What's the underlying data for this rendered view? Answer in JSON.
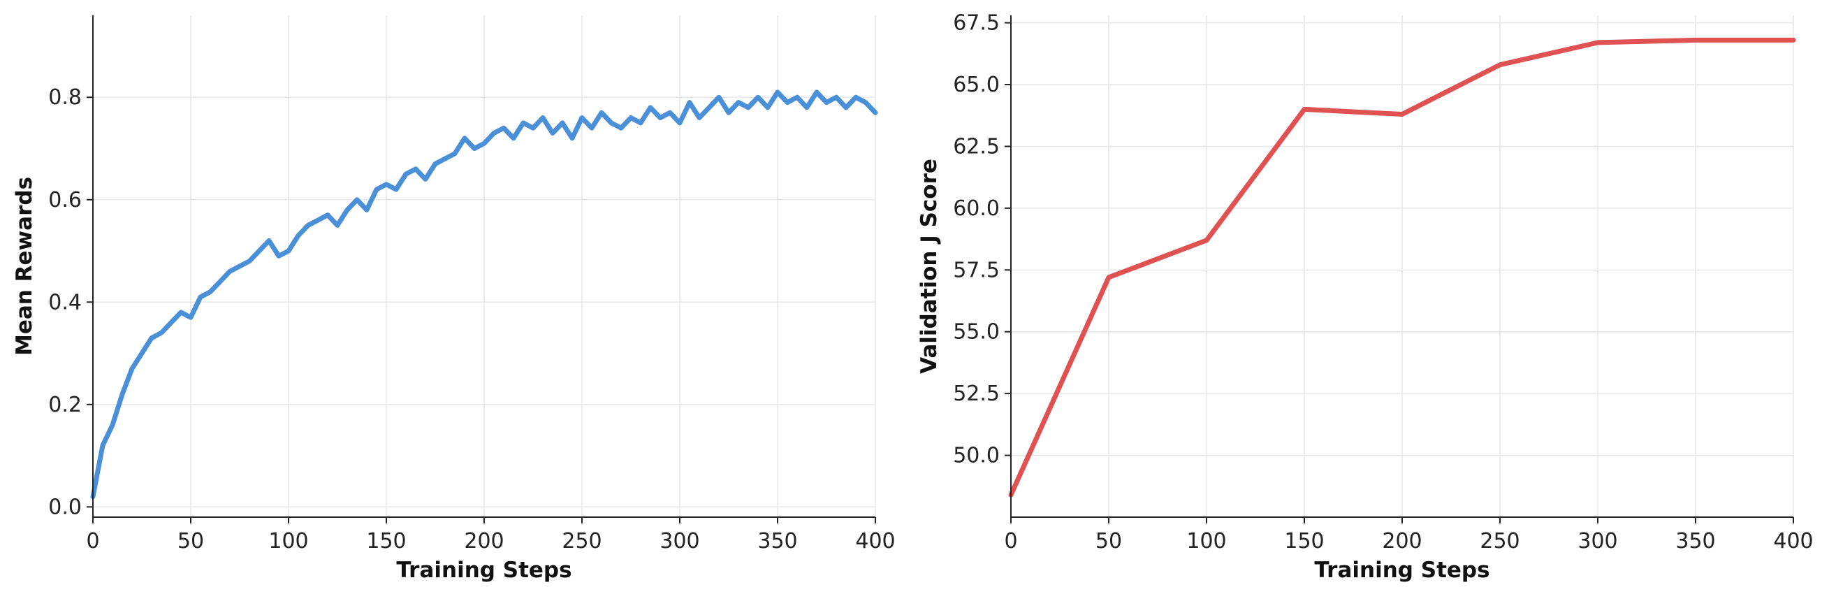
{
  "colors": {
    "rewards_line": "#4a90d9",
    "validation_line": "#e05252",
    "grid": "#e6e6e6",
    "axis": "#222222"
  },
  "chart_data": [
    {
      "type": "line",
      "title": "",
      "xlabel": "Training Steps",
      "ylabel": "Mean Rewards",
      "xlim": [
        0,
        400
      ],
      "ylim": [
        -0.02,
        0.96
      ],
      "xticks": [
        0,
        50,
        100,
        150,
        200,
        250,
        300,
        350,
        400
      ],
      "xtick_labels": [
        "0",
        "50",
        "100",
        "150",
        "200",
        "250",
        "300",
        "350",
        "400"
      ],
      "yticks": [
        0.0,
        0.2,
        0.4,
        0.6,
        0.8
      ],
      "ytick_labels": [
        "0.0",
        "0.2",
        "0.4",
        "0.6",
        "0.8"
      ],
      "grid": true,
      "legend": "none",
      "series": [
        {
          "color": "#4a90d9",
          "x": [
            0,
            5,
            10,
            15,
            20,
            25,
            30,
            35,
            40,
            45,
            50,
            55,
            60,
            65,
            70,
            75,
            80,
            85,
            90,
            95,
            100,
            105,
            110,
            115,
            120,
            125,
            130,
            135,
            140,
            145,
            150,
            155,
            160,
            165,
            170,
            175,
            180,
            185,
            190,
            195,
            200,
            205,
            210,
            215,
            220,
            225,
            230,
            235,
            240,
            245,
            250,
            255,
            260,
            265,
            270,
            275,
            280,
            285,
            290,
            295,
            300,
            305,
            310,
            315,
            320,
            325,
            330,
            335,
            340,
            345,
            350,
            355,
            360,
            365,
            370,
            375,
            380,
            385,
            390,
            395,
            400
          ],
          "y": [
            0.02,
            0.12,
            0.16,
            0.22,
            0.27,
            0.3,
            0.33,
            0.34,
            0.36,
            0.38,
            0.37,
            0.41,
            0.42,
            0.44,
            0.46,
            0.47,
            0.48,
            0.5,
            0.52,
            0.49,
            0.5,
            0.53,
            0.55,
            0.56,
            0.57,
            0.55,
            0.58,
            0.6,
            0.58,
            0.62,
            0.63,
            0.62,
            0.65,
            0.66,
            0.64,
            0.67,
            0.68,
            0.69,
            0.72,
            0.7,
            0.71,
            0.73,
            0.74,
            0.72,
            0.75,
            0.74,
            0.76,
            0.73,
            0.75,
            0.72,
            0.76,
            0.74,
            0.77,
            0.75,
            0.74,
            0.76,
            0.75,
            0.78,
            0.76,
            0.77,
            0.75,
            0.79,
            0.76,
            0.78,
            0.8,
            0.77,
            0.79,
            0.78,
            0.8,
            0.78,
            0.81,
            0.79,
            0.8,
            0.78,
            0.81,
            0.79,
            0.8,
            0.78,
            0.8,
            0.79,
            0.77
          ]
        }
      ]
    },
    {
      "type": "line",
      "title": "",
      "xlabel": "Training Steps",
      "ylabel": "Validation J Score",
      "xlim": [
        0,
        400
      ],
      "ylim": [
        47.5,
        67.8
      ],
      "xticks": [
        0,
        50,
        100,
        150,
        200,
        250,
        300,
        350,
        400
      ],
      "xtick_labels": [
        "0",
        "50",
        "100",
        "150",
        "200",
        "250",
        "300",
        "350",
        "400"
      ],
      "yticks": [
        50.0,
        52.5,
        55.0,
        57.5,
        60.0,
        62.5,
        65.0,
        67.5
      ],
      "ytick_labels": [
        "50.0",
        "52.5",
        "55.0",
        "57.5",
        "60.0",
        "62.5",
        "65.0",
        "67.5"
      ],
      "grid": true,
      "legend": "none",
      "series": [
        {
          "color": "#e05252",
          "x": [
            0,
            50,
            100,
            150,
            200,
            250,
            300,
            350,
            400
          ],
          "y": [
            48.4,
            57.2,
            58.7,
            64.0,
            63.8,
            65.8,
            66.7,
            66.8,
            66.8
          ]
        }
      ]
    }
  ]
}
